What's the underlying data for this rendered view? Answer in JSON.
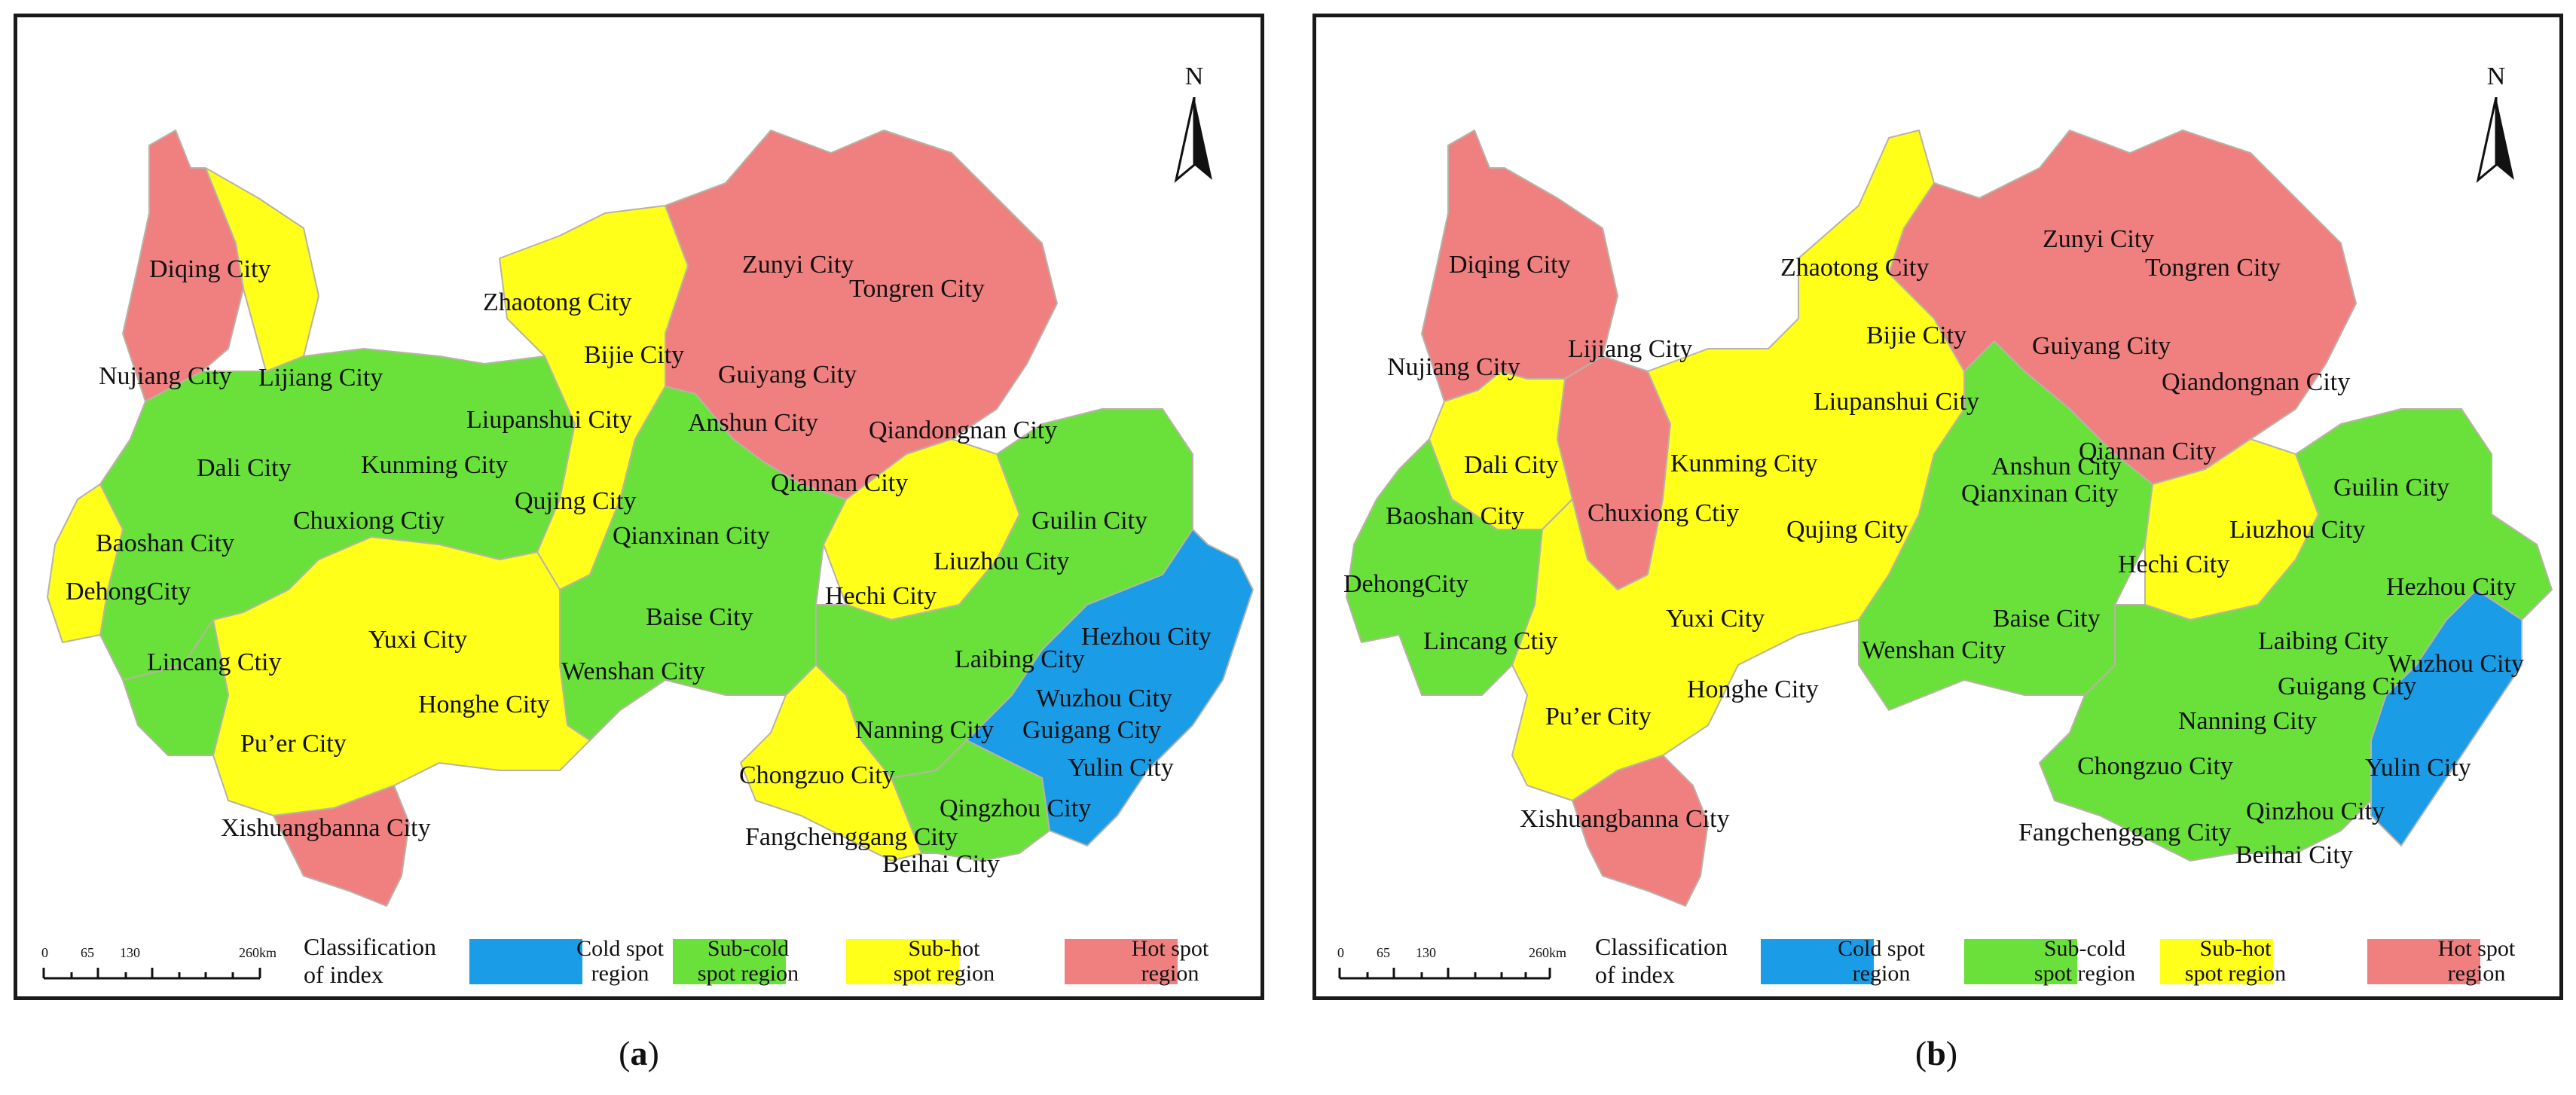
{
  "colors": {
    "cold": "#1a9ce6",
    "sub_cold": "#6ae13a",
    "sub_hot": "#ffff1a",
    "hot": "#f08080"
  },
  "panels": [
    {
      "id": "a",
      "caption_prefix": "(",
      "caption_letter": "a",
      "caption_suffix": ")",
      "north": "N",
      "legend": {
        "title": "Classification\nof index",
        "items": [
          {
            "class": "cold",
            "label": "Cold spot\nregion"
          },
          {
            "class": "sub_cold",
            "label": "Sub-cold\nspot region"
          },
          {
            "class": "sub_hot",
            "label": "Sub-hot\nspot region"
          },
          {
            "class": "hot",
            "label": "Hot spot\nregion"
          }
        ]
      },
      "scale_labels": [
        "0",
        "65",
        "130",
        "260km"
      ],
      "cities": [
        {
          "name": "Diqing City",
          "class": "hot"
        },
        {
          "name": "Nujiang City",
          "class": "hot"
        },
        {
          "name": "Lijiang City",
          "class": "sub_hot"
        },
        {
          "name": "Zhaotong City",
          "class": "sub_hot"
        },
        {
          "name": "Zunyi City",
          "class": "hot"
        },
        {
          "name": "Tongren City",
          "class": "hot"
        },
        {
          "name": "Bijie City",
          "class": "hot"
        },
        {
          "name": "Guiyang City",
          "class": "hot"
        },
        {
          "name": "Liupanshui City",
          "class": "sub_hot"
        },
        {
          "name": "Anshun City",
          "class": "sub_hot"
        },
        {
          "name": "Qiandongnan City",
          "class": "hot"
        },
        {
          "name": "Dali City",
          "class": "sub_cold"
        },
        {
          "name": "Kunming City",
          "class": "sub_cold"
        },
        {
          "name": "Qujing City",
          "class": "sub_hot"
        },
        {
          "name": "Qiannan City",
          "class": "hot"
        },
        {
          "name": "Guilin City",
          "class": "sub_cold"
        },
        {
          "name": "Baoshan City",
          "class": "sub_hot"
        },
        {
          "name": "Chuxiong Ctiy",
          "class": "sub_cold"
        },
        {
          "name": "Qianxinan City",
          "class": "sub_cold"
        },
        {
          "name": "Liuzhou City",
          "class": "sub_cold"
        },
        {
          "name": "DehongCity",
          "class": "sub_hot"
        },
        {
          "name": "Hechi City",
          "class": "sub_hot"
        },
        {
          "name": "Baise City",
          "class": "sub_cold"
        },
        {
          "name": "Yuxi City",
          "class": "sub_hot"
        },
        {
          "name": "Hezhou City",
          "class": "cold"
        },
        {
          "name": "Lincang Ctiy",
          "class": "sub_cold"
        },
        {
          "name": "Laibing City",
          "class": "sub_cold"
        },
        {
          "name": "Wenshan City",
          "class": "sub_cold"
        },
        {
          "name": "Honghe City",
          "class": "sub_hot"
        },
        {
          "name": "Wuzhou City",
          "class": "cold"
        },
        {
          "name": "Pu’er City",
          "class": "sub_hot"
        },
        {
          "name": "Nanning City",
          "class": "sub_cold"
        },
        {
          "name": "Guigang City",
          "class": "cold"
        },
        {
          "name": "Chongzuo City",
          "class": "sub_hot"
        },
        {
          "name": "Yulin City",
          "class": "cold"
        },
        {
          "name": "Xishuangbanna City",
          "class": "hot"
        },
        {
          "name": "Qingzhou City",
          "class": "sub_cold"
        },
        {
          "name": "Fangchenggang City",
          "class": "sub_hot"
        },
        {
          "name": "Beihai City",
          "class": "sub_cold"
        }
      ]
    },
    {
      "id": "b",
      "caption_prefix": "(",
      "caption_letter": "b",
      "caption_suffix": ")",
      "north": "N",
      "legend": {
        "title": "Classification\nof index",
        "items": [
          {
            "class": "cold",
            "label": "Cold spot\nregion"
          },
          {
            "class": "sub_cold",
            "label": "Sub-cold\nspot region"
          },
          {
            "class": "sub_hot",
            "label": "Sub-hot\nspot region"
          },
          {
            "class": "hot",
            "label": "Hot spot\nregion"
          }
        ]
      },
      "scale_labels": [
        "0",
        "65",
        "130",
        "260km"
      ],
      "cities": [
        {
          "name": "Zunyi City",
          "class": "hot"
        },
        {
          "name": "Diqing City",
          "class": "hot"
        },
        {
          "name": "Zhaotong City",
          "class": "sub_hot"
        },
        {
          "name": "Tongren City",
          "class": "hot"
        },
        {
          "name": "Bijie City",
          "class": "hot"
        },
        {
          "name": "Guiyang City",
          "class": "hot"
        },
        {
          "name": "Nujiang City",
          "class": "hot"
        },
        {
          "name": "Lijiang City",
          "class": "hot"
        },
        {
          "name": "Qiandongnan City",
          "class": "hot"
        },
        {
          "name": "Liupanshui City",
          "class": "sub_hot"
        },
        {
          "name": "Dali City",
          "class": "sub_hot"
        },
        {
          "name": "Kunming City",
          "class": "sub_hot"
        },
        {
          "name": "Anshun City",
          "class": "sub_cold"
        },
        {
          "name": "Qiannan City",
          "class": "hot"
        },
        {
          "name": "Baoshan City",
          "class": "sub_cold"
        },
        {
          "name": "Chuxiong Ctiy",
          "class": "hot"
        },
        {
          "name": "Qianxinan City",
          "class": "sub_cold"
        },
        {
          "name": "Guilin City",
          "class": "sub_cold"
        },
        {
          "name": "Qujing City",
          "class": "sub_hot"
        },
        {
          "name": "Liuzhou City",
          "class": "sub_cold"
        },
        {
          "name": "Hechi City",
          "class": "sub_hot"
        },
        {
          "name": "DehongCity",
          "class": "sub_cold"
        },
        {
          "name": "Hezhou City",
          "class": "sub_cold"
        },
        {
          "name": "Yuxi City",
          "class": "sub_hot"
        },
        {
          "name": "Baise City",
          "class": "sub_cold"
        },
        {
          "name": "Lincang Ctiy",
          "class": "sub_cold"
        },
        {
          "name": "Laibing City",
          "class": "sub_cold"
        },
        {
          "name": "Wenshan City",
          "class": "sub_cold"
        },
        {
          "name": "Wuzhou City",
          "class": "cold"
        },
        {
          "name": "Guigang City",
          "class": "cold"
        },
        {
          "name": "Honghe City",
          "class": "sub_hot"
        },
        {
          "name": "Pu’er City",
          "class": "sub_hot"
        },
        {
          "name": "Nanning City",
          "class": "sub_cold"
        },
        {
          "name": "Chongzuo City",
          "class": "sub_cold"
        },
        {
          "name": "Yulin City",
          "class": "cold"
        },
        {
          "name": "Xishuangbanna City",
          "class": "hot"
        },
        {
          "name": "Qinzhou City",
          "class": "sub_cold"
        },
        {
          "name": "Fangchenggang City",
          "class": "sub_cold"
        },
        {
          "name": "Beihai City",
          "class": "sub_cold"
        }
      ]
    }
  ]
}
